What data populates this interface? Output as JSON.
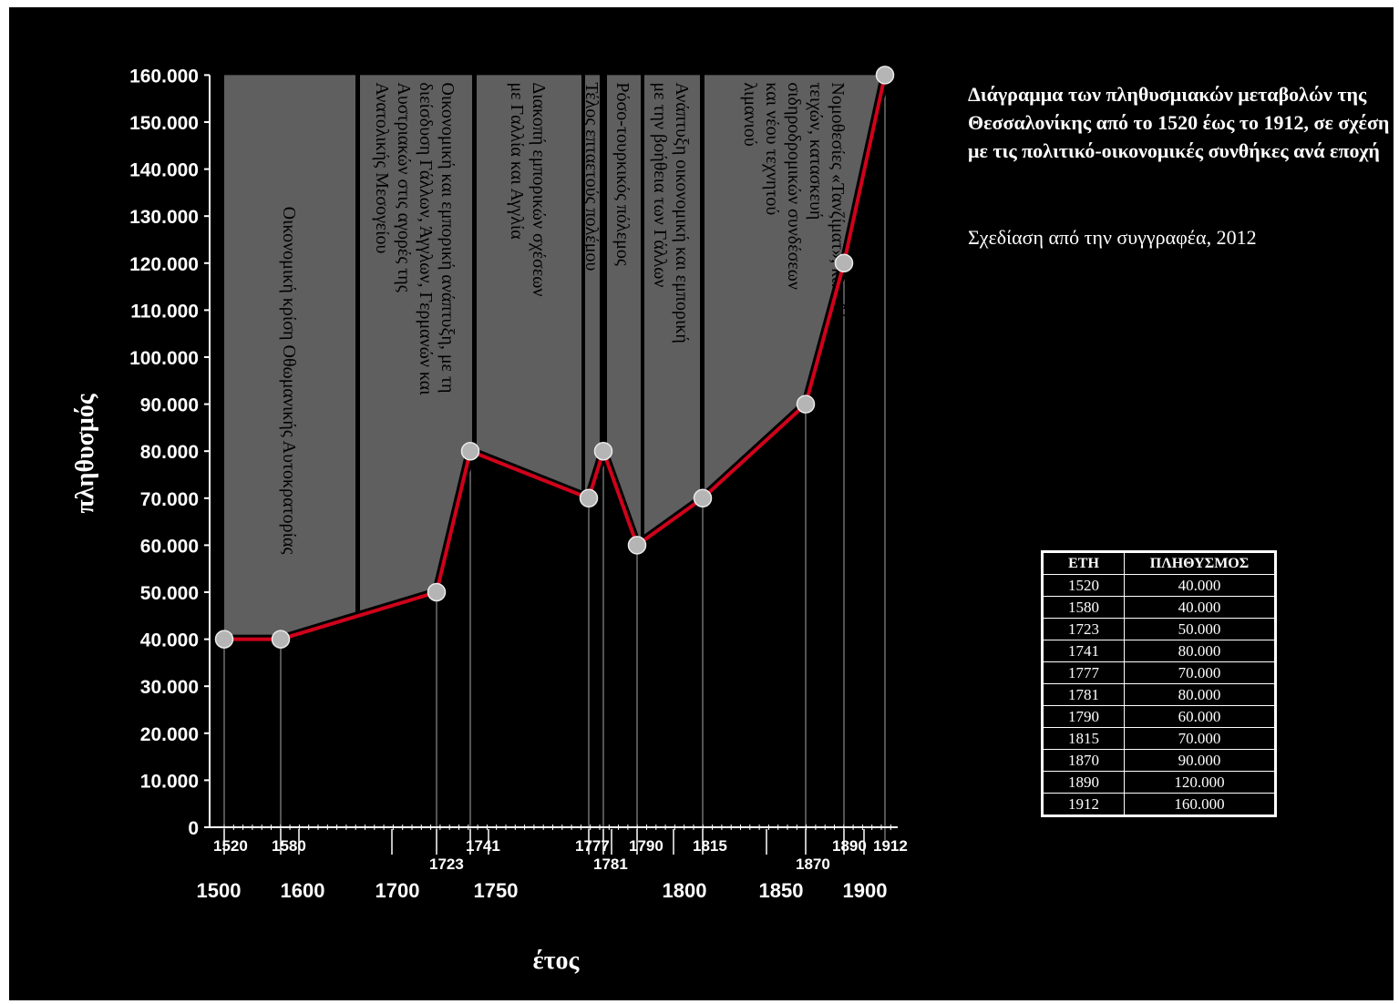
{
  "title": "Διάγραμμα των πληθυσμιακών μεταβολών της Θεσσαλονίκης από το 1520 έως το 1912, σε σχέση με τις πολιτικό-οικονομικές συνθήκες ανά εποχή",
  "credit": "Σχεδίαση από την συγγραφέα, 2012",
  "table": {
    "headers": [
      "ΕΤΗ",
      "ΠΛΗΘΥΣΜΟΣ"
    ],
    "rows": [
      [
        "1520",
        "40.000"
      ],
      [
        "1580",
        "40.000"
      ],
      [
        "1723",
        "50.000"
      ],
      [
        "1741",
        "80.000"
      ],
      [
        "1777",
        "70.000"
      ],
      [
        "1781",
        "80.000"
      ],
      [
        "1790",
        "60.000"
      ],
      [
        "1815",
        "70.000"
      ],
      [
        "1870",
        "90.000"
      ],
      [
        "1890",
        "120.000"
      ],
      [
        "1912",
        "160.000"
      ]
    ]
  },
  "colors": {
    "background": "#000000",
    "panel": "#5f5f5f",
    "line": "#d0021b",
    "marker": "#b5b5b5",
    "text": "#ffffff"
  },
  "chart_data": {
    "type": "line",
    "xlabel": "έτος",
    "ylabel": "πληθυσμός",
    "ylim": [
      0,
      160000
    ],
    "yticks": [
      "0",
      "10.000",
      "20.000",
      "30.000",
      "40.000",
      "50.000",
      "60.000",
      "70.000",
      "80.000",
      "90.000",
      "100.000",
      "110.000",
      "120.000",
      "130.000",
      "140.000",
      "150.000",
      "160.000"
    ],
    "x_scale_labels": [
      "1500",
      "1600",
      "1700",
      "1750",
      "1800",
      "1850",
      "1900"
    ],
    "series": [
      {
        "x": [
          1520,
          1580,
          1723,
          1741,
          1777,
          1781,
          1790,
          1815,
          1870,
          1890,
          1912
        ],
        "y": [
          40000,
          40000,
          50000,
          80000,
          70000,
          80000,
          60000,
          70000,
          90000,
          120000,
          160000
        ]
      }
    ],
    "point_labels": [
      "1520",
      "1580",
      "1723",
      "1741",
      "1777",
      "1781",
      "1790",
      "1815",
      "1870",
      "1890",
      "1912"
    ],
    "periods": [
      {
        "lines": [
          "Οικονομική κρίση Οθωμανικής Αυτοκρατορίας"
        ]
      },
      {
        "lines": [
          "Οικονομική και εμπορική ανάπτυξη, με τη",
          "διείσδυση Γάλλων, Άγγλων, Γερμανών και",
          "Αυστριακών στις αγορές της",
          "Ανατολικής Μεσογείου"
        ]
      },
      {
        "lines": [
          "Διακοπή εμπορικών σχέσεων",
          "με Γαλλία και Αγγλία"
        ]
      },
      {
        "lines": [
          "Τέλος επταετούς πολέμου"
        ]
      },
      {
        "lines": [
          "Ρόσο-τουρκικός πόλεμος"
        ]
      },
      {
        "lines": [
          "Ανάπτυξη οικονομική και εμπορική",
          "με την βοήθεια των Γάλλων"
        ]
      },
      {
        "lines": [
          "Νομοθεσίες «Τανζίματ», κατεδάφιση",
          "τειχών, κατασκευή",
          "σιδηροδρομικών συνδέσεων",
          "και νέου τεχνητού",
          "λιμανιού"
        ]
      }
    ]
  }
}
